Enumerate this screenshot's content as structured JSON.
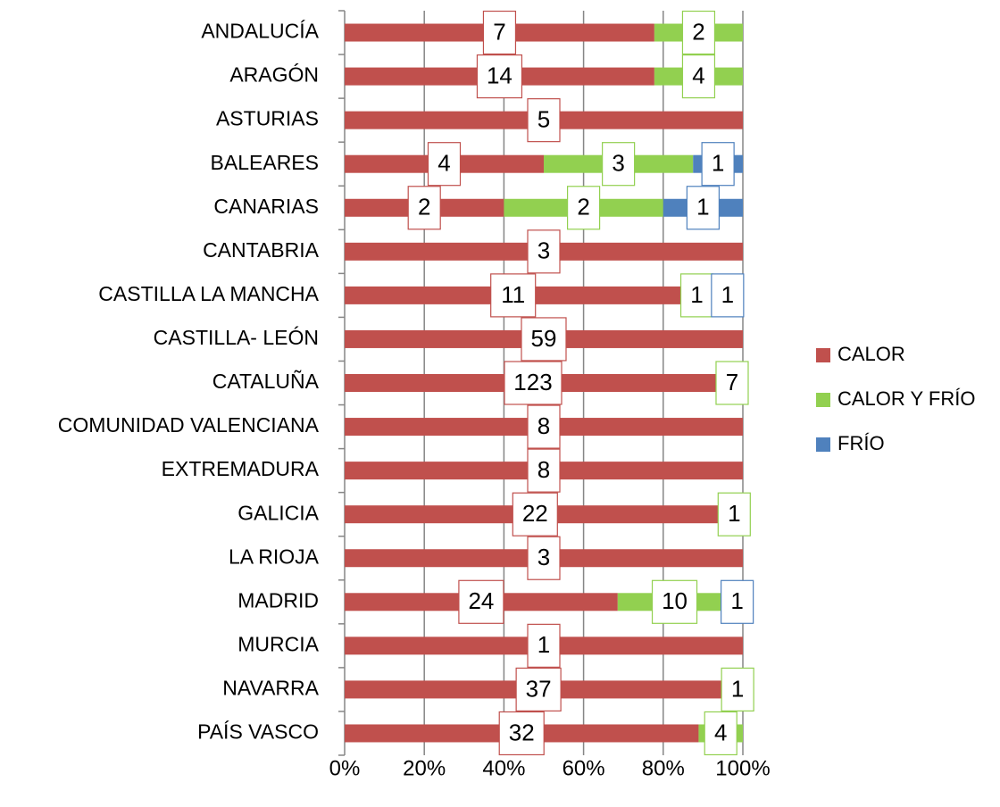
{
  "chart_data": {
    "type": "bar",
    "orientation": "horizontal",
    "stacking": "percent",
    "categories": [
      "ANDALUCÍA",
      "ARAGÓN",
      "ASTURIAS",
      "BALEARES",
      "CANARIAS",
      "CANTABRIA",
      "CASTILLA LA MANCHA",
      "CASTILLA- LEÓN",
      "CATALUÑA",
      "COMUNIDAD VALENCIANA",
      "EXTREMADURA",
      "GALICIA",
      "LA RIOJA",
      "MADRID",
      "MURCIA",
      "NAVARRA",
      "PAÍS VASCO"
    ],
    "series": [
      {
        "name": "CALOR",
        "color": "#c0504d",
        "values": [
          7,
          14,
          5,
          4,
          2,
          3,
          11,
          59,
          123,
          8,
          8,
          22,
          3,
          24,
          1,
          37,
          32
        ]
      },
      {
        "name": "CALOR Y FRÍO",
        "color": "#92d050",
        "values": [
          2,
          4,
          null,
          3,
          2,
          null,
          1,
          null,
          7,
          null,
          null,
          1,
          null,
          10,
          null,
          1,
          4
        ]
      },
      {
        "name": "FRÍO",
        "color": "#4f81bd",
        "values": [
          null,
          null,
          null,
          1,
          1,
          null,
          1,
          null,
          null,
          null,
          null,
          null,
          null,
          1,
          null,
          null,
          null
        ]
      }
    ],
    "xlim": [
      0,
      100
    ],
    "xticks": [
      {
        "value": 0,
        "label": "0%"
      },
      {
        "value": 20,
        "label": "20%"
      },
      {
        "value": 40,
        "label": "40%"
      },
      {
        "value": 60,
        "label": "60%"
      },
      {
        "value": 80,
        "label": "80%"
      },
      {
        "value": 100,
        "label": "100%"
      }
    ],
    "grid": true,
    "legend": "right"
  }
}
